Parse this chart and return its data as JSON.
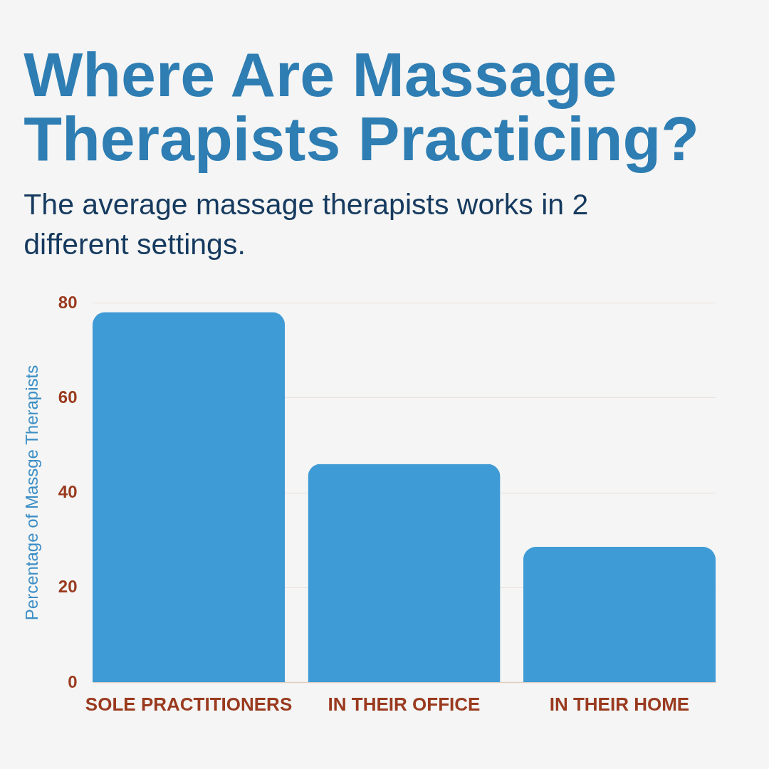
{
  "chart_data": {
    "type": "bar",
    "title": "Where Are Massage Therapists Practicing?",
    "subtitle": "The average massage therapists works in 2 different settings.",
    "ylabel": "Percentage of Massge Therapists",
    "categories": [
      "SOLE PRACTITIONERS",
      "IN THEIR OFFICE",
      "IN THEIR HOME"
    ],
    "values": [
      78,
      46,
      28.5
    ],
    "color": "#3f9bd6",
    "ylim": [
      0,
      80
    ],
    "yticks": [
      0,
      20,
      40,
      60,
      80
    ],
    "grid": "y"
  }
}
